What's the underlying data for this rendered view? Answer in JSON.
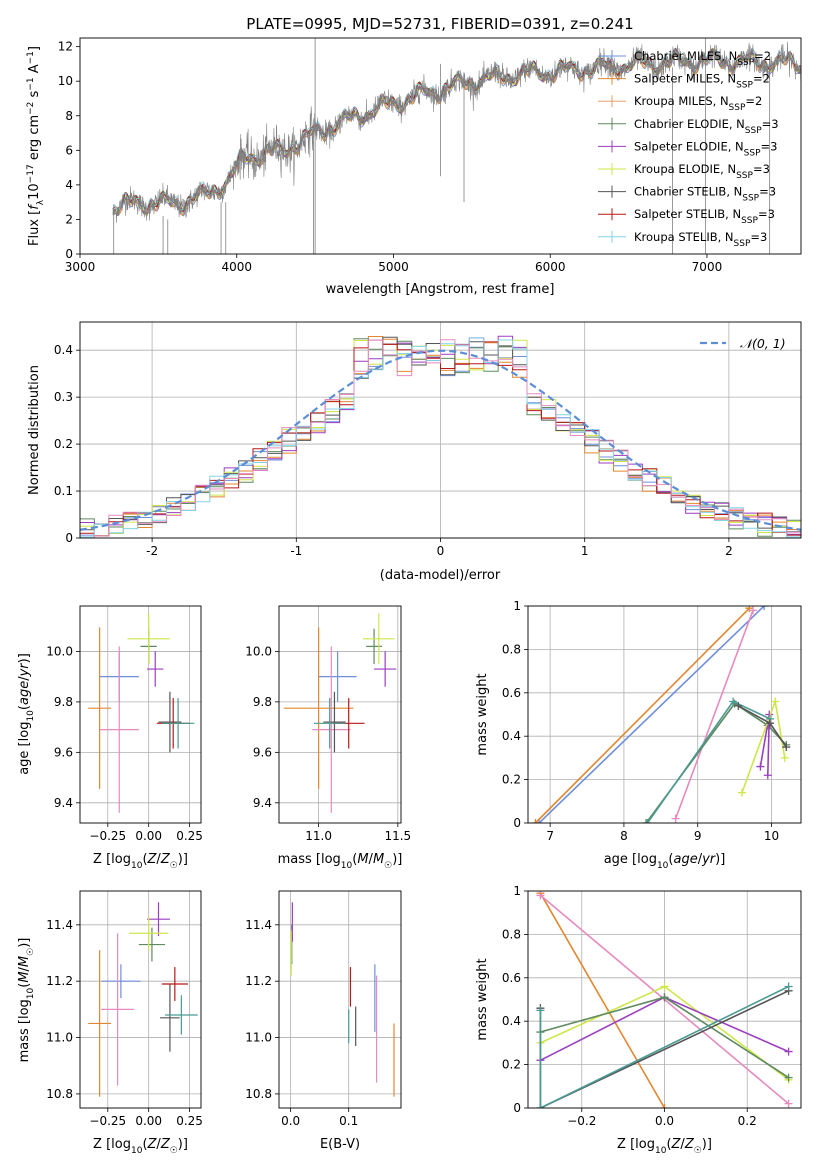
{
  "colors": {
    "miles_chabrier": "#6f8fdc",
    "miles_salpeter": "#e2872f",
    "miles_kroupa": "#e7a06a",
    "elodie_chabrier": "#5f8a5f",
    "elodie_salpeter": "#9b3fc0",
    "elodie_kroupa": "#cfe64a",
    "stelib_chabrier": "#555555",
    "stelib_salpeter": "#b61818",
    "stelib_kroupa": "#86d3e6",
    "pink": "#e58bbf",
    "teal": "#4b9a93",
    "gauss": "#5b8ed6",
    "data": "#808080"
  },
  "chart_data": [
    {
      "id": "spectrum",
      "type": "line",
      "title": "PLATE=0995, MJD=52731, FIBERID=0391, z=0.241",
      "xlabel": "wavelength [Angstrom, rest frame]",
      "ylabel": "Flux [fλ10⁻¹⁷ erg cm⁻² s⁻¹ A⁻¹]",
      "xlim": [
        3000,
        7600
      ],
      "ylim": [
        0,
        12.5
      ],
      "xticks": [
        3000,
        4000,
        5000,
        6000,
        7000
      ],
      "yticks": [
        0,
        2,
        4,
        6,
        8,
        10,
        12
      ],
      "legend_position": "upper-right",
      "legend": [
        "Chabrier MILES, N_SSP=2",
        "Salpeter MILES, N_SSP=2",
        "Kroupa MILES, N_SSP=2",
        "Chabrier ELODIE, N_SSP=3",
        "Salpeter ELODIE, N_SSP=3",
        "Kroupa ELODIE, N_SSP=3",
        "Chabrier STELIB, N_SSP=3",
        "Salpeter STELIB, N_SSP=3",
        "Kroupa STELIB, N_SSP=3"
      ],
      "continuum": [
        {
          "x": 3210,
          "y": 2.7
        },
        {
          "x": 3400,
          "y": 3.0
        },
        {
          "x": 3600,
          "y": 2.9
        },
        {
          "x": 3800,
          "y": 3.4
        },
        {
          "x": 3950,
          "y": 4.3
        },
        {
          "x": 4050,
          "y": 5.6
        },
        {
          "x": 4300,
          "y": 6.0
        },
        {
          "x": 4500,
          "y": 7.0
        },
        {
          "x": 4800,
          "y": 8.1
        },
        {
          "x": 5000,
          "y": 8.7
        },
        {
          "x": 5200,
          "y": 9.3
        },
        {
          "x": 5500,
          "y": 10.0
        },
        {
          "x": 5800,
          "y": 10.4
        },
        {
          "x": 6200,
          "y": 10.7
        },
        {
          "x": 6600,
          "y": 11.0
        },
        {
          "x": 7000,
          "y": 11.2
        },
        {
          "x": 7400,
          "y": 11.1
        },
        {
          "x": 7600,
          "y": 11.0
        }
      ]
    },
    {
      "id": "residuals",
      "type": "histogram",
      "xlabel": "(data-model)/error",
      "ylabel": "Normed distribution",
      "xlim": [
        -2.5,
        2.5
      ],
      "ylim": [
        0,
        0.46
      ],
      "xticks": [
        -2,
        -1,
        0,
        1,
        2
      ],
      "yticks": [
        0.0,
        0.1,
        0.2,
        0.3,
        0.4
      ],
      "legend": [
        "𝒩(0, 1)"
      ],
      "legend_position": "upper-right"
    },
    {
      "id": "z-age",
      "type": "errorbar",
      "xlabel": "Z [log10(Z/Z☉)]",
      "ylabel": "age  [log10(age/yr)]",
      "xlim": [
        -0.42,
        0.32
      ],
      "ylim": [
        9.32,
        10.18
      ],
      "xticks": [
        -0.25,
        0.0,
        0.25
      ],
      "xticklabels": [
        "−0.25",
        "0.00",
        "0.25"
      ],
      "yticks": [
        9.4,
        9.6,
        9.8,
        10.0
      ],
      "yticklabels": [
        "9.4",
        "9.6",
        "9.8",
        "10.0"
      ],
      "points": [
        {
          "c": "blue",
          "x": -0.18,
          "xerr": 0.12,
          "y": 9.9,
          "yerr": 0.1
        },
        {
          "c": "orange",
          "x": -0.3,
          "xerr": 0.07,
          "y": 9.775,
          "yerr": 0.32
        },
        {
          "c": "pink",
          "x": -0.18,
          "xerr": 0.12,
          "y": 9.69,
          "yerr": 0.33
        },
        {
          "c": "green",
          "x": 0.0,
          "xerr": 0.05,
          "y": 10.02,
          "yerr": 0.07
        },
        {
          "c": "purple",
          "x": 0.04,
          "xerr": 0.05,
          "y": 9.93,
          "yerr": 0.07
        },
        {
          "c": "yellow",
          "x": 0.0,
          "xerr": 0.13,
          "y": 10.05,
          "yerr": 0.1
        },
        {
          "c": "dark",
          "x": 0.13,
          "xerr": 0.07,
          "y": 9.72,
          "yerr": 0.12
        },
        {
          "c": "red",
          "x": 0.15,
          "xerr": 0.1,
          "y": 9.715,
          "yerr": 0.1
        },
        {
          "c": "teal",
          "x": 0.18,
          "xerr": 0.1,
          "y": 9.715,
          "yerr": 0.1
        }
      ]
    },
    {
      "id": "mass-age",
      "type": "errorbar",
      "xlabel": "mass [log10(M/M☉)]",
      "xlim": [
        10.75,
        11.52
      ],
      "ylim": [
        9.32,
        10.18
      ],
      "xticks": [
        11.0,
        11.5
      ],
      "xticklabels": [
        "11.0",
        "11.5"
      ],
      "yticks": [
        9.4,
        9.6,
        9.8,
        10.0
      ],
      "yticklabels": [
        "9.4",
        "9.6",
        "9.8",
        "10.0"
      ],
      "points": [
        {
          "c": "blue",
          "x": 11.12,
          "xerr": 0.12,
          "y": 9.9,
          "yerr": 0.1
        },
        {
          "c": "orange",
          "x": 11.0,
          "xerr": 0.22,
          "y": 9.775,
          "yerr": 0.32
        },
        {
          "c": "pink",
          "x": 11.08,
          "xerr": 0.12,
          "y": 9.69,
          "yerr": 0.33
        },
        {
          "c": "green",
          "x": 11.35,
          "xerr": 0.05,
          "y": 10.02,
          "yerr": 0.07
        },
        {
          "c": "purple",
          "x": 11.42,
          "xerr": 0.07,
          "y": 9.93,
          "yerr": 0.07
        },
        {
          "c": "yellow",
          "x": 11.38,
          "xerr": 0.1,
          "y": 10.05,
          "yerr": 0.1
        },
        {
          "c": "dark",
          "x": 11.1,
          "xerr": 0.07,
          "y": 9.72,
          "yerr": 0.12
        },
        {
          "c": "red",
          "x": 11.19,
          "xerr": 0.1,
          "y": 9.715,
          "yerr": 0.1
        },
        {
          "c": "teal",
          "x": 11.07,
          "xerr": 0.1,
          "y": 9.715,
          "yerr": 0.1
        }
      ]
    },
    {
      "id": "age-weight",
      "type": "line",
      "xlabel": "age  [log10(age/yr)]",
      "ylabel": "mass weight",
      "xlim": [
        6.7,
        10.4
      ],
      "ylim": [
        0,
        1
      ],
      "xticks": [
        7,
        8,
        9,
        10
      ],
      "yticks": [
        0.0,
        0.2,
        0.4,
        0.6,
        0.8,
        1.0
      ],
      "series": [
        {
          "c": "blue",
          "pts": [
            [
              6.85,
              0
            ],
            [
              9.9,
              1.0
            ]
          ]
        },
        {
          "c": "orange",
          "pts": [
            [
              6.8,
              0
            ],
            [
              9.7,
              0.99
            ]
          ]
        },
        {
          "c": "pink",
          "pts": [
            [
              8.7,
              0.02
            ],
            [
              9.75,
              0.98
            ]
          ]
        },
        {
          "c": "green",
          "pts": [
            [
              8.3,
              0.0
            ],
            [
              9.5,
              0.55
            ],
            [
              9.95,
              0.45
            ],
            [
              10.2,
              0.36
            ]
          ]
        },
        {
          "c": "purple",
          "pts": [
            [
              9.85,
              0.26
            ],
            [
              9.97,
              0.5
            ],
            [
              9.95,
              0.22
            ]
          ]
        },
        {
          "c": "yellow",
          "pts": [
            [
              9.6,
              0.14
            ],
            [
              10.05,
              0.56
            ],
            [
              10.18,
              0.3
            ]
          ]
        },
        {
          "c": "teal",
          "pts": [
            [
              8.32,
              0.0
            ],
            [
              9.48,
              0.56
            ],
            [
              9.98,
              0.48
            ]
          ]
        },
        {
          "c": "dark",
          "pts": [
            [
              9.55,
              0.54
            ],
            [
              9.98,
              0.46
            ],
            [
              10.2,
              0.35
            ]
          ]
        }
      ]
    },
    {
      "id": "z-mass",
      "type": "errorbar",
      "xlabel": "Z [log10(Z/Z☉)]",
      "ylabel": "mass [log10(M/M☉)]",
      "xlim": [
        -0.42,
        0.32
      ],
      "ylim": [
        10.75,
        11.52
      ],
      "xticks": [
        -0.25,
        0.0,
        0.25
      ],
      "xticklabels": [
        "−0.25",
        "0.00",
        "0.25"
      ],
      "yticks": [
        10.8,
        11.0,
        11.2,
        11.4
      ],
      "yticklabels": [
        "10.8",
        "11.0",
        "11.2",
        "11.4"
      ],
      "points": [
        {
          "c": "blue",
          "x": -0.17,
          "xerr": 0.12,
          "y": 11.2,
          "yerr": 0.06
        },
        {
          "c": "orange",
          "x": -0.3,
          "xerr": 0.07,
          "y": 11.05,
          "yerr": 0.26
        },
        {
          "c": "pink",
          "x": -0.19,
          "xerr": 0.1,
          "y": 11.1,
          "yerr": 0.27
        },
        {
          "c": "green",
          "x": 0.02,
          "xerr": 0.08,
          "y": 11.33,
          "yerr": 0.06
        },
        {
          "c": "purple",
          "x": 0.06,
          "xerr": 0.07,
          "y": 11.42,
          "yerr": 0.06
        },
        {
          "c": "yellow",
          "x": 0.0,
          "xerr": 0.12,
          "y": 11.37,
          "yerr": 0.06
        },
        {
          "c": "dark",
          "x": 0.13,
          "xerr": 0.06,
          "y": 11.07,
          "yerr": 0.12
        },
        {
          "c": "red",
          "x": 0.16,
          "xerr": 0.08,
          "y": 11.19,
          "yerr": 0.06
        },
        {
          "c": "teal",
          "x": 0.2,
          "xerr": 0.1,
          "y": 11.08,
          "yerr": 0.07
        }
      ]
    },
    {
      "id": "ebv-mass",
      "type": "errorbar",
      "xlabel": "E(B-V)",
      "xlim": [
        -0.02,
        0.19
      ],
      "ylim": [
        10.75,
        11.52
      ],
      "xticks": [
        0.0,
        0.1
      ],
      "xticklabels": [
        "0.0",
        "0.1"
      ],
      "yticks": [
        10.8,
        11.0,
        11.2,
        11.4
      ],
      "yticklabels": [
        "10.8",
        "11.0",
        "11.2",
        "11.4"
      ],
      "points": [
        {
          "c": "blue",
          "x": 0.145,
          "xerr": 0.0,
          "y": 11.14,
          "yerr": 0.12
        },
        {
          "c": "orange",
          "x": 0.178,
          "xerr": 0.0,
          "y": 10.92,
          "yerr": 0.13
        },
        {
          "c": "pink",
          "x": 0.148,
          "xerr": 0.0,
          "y": 11.03,
          "yerr": 0.19
        },
        {
          "c": "green",
          "x": 0.002,
          "xerr": 0.0,
          "y": 11.33,
          "yerr": 0.07
        },
        {
          "c": "purple",
          "x": 0.003,
          "xerr": 0.0,
          "y": 11.41,
          "yerr": 0.07
        },
        {
          "c": "yellow",
          "x": 0.001,
          "xerr": 0.0,
          "y": 11.3,
          "yerr": 0.08
        },
        {
          "c": "dark",
          "x": 0.112,
          "xerr": 0.0,
          "y": 11.04,
          "yerr": 0.07
        },
        {
          "c": "red",
          "x": 0.103,
          "xerr": 0.0,
          "y": 11.18,
          "yerr": 0.07
        },
        {
          "c": "teal",
          "x": 0.1,
          "xerr": 0.0,
          "y": 11.04,
          "yerr": 0.06
        }
      ]
    },
    {
      "id": "z-weight",
      "type": "line",
      "xlabel": "Z [log10(Z/Z☉)]",
      "ylabel": "mass weight",
      "xlim": [
        -0.33,
        0.33
      ],
      "ylim": [
        0,
        1
      ],
      "xticks": [
        -0.2,
        0.0,
        0.2
      ],
      "xticklabels": [
        "−0.2",
        "0.0",
        "0.2"
      ],
      "yticks": [
        0.0,
        0.2,
        0.4,
        0.6,
        0.8,
        1.0
      ],
      "series": [
        {
          "c": "orange",
          "pts": [
            [
              -0.3,
              0.99
            ],
            [
              0.0,
              0.0
            ]
          ]
        },
        {
          "c": "pink",
          "pts": [
            [
              -0.3,
              0.98
            ],
            [
              0.3,
              0.02
            ]
          ]
        },
        {
          "c": "yellow",
          "pts": [
            [
              -0.3,
              0.3
            ],
            [
              0.0,
              0.56
            ],
            [
              0.3,
              0.13
            ]
          ]
        },
        {
          "c": "purple",
          "pts": [
            [
              -0.3,
              0.22
            ],
            [
              0.0,
              0.51
            ],
            [
              0.3,
              0.26
            ]
          ]
        },
        {
          "c": "green",
          "pts": [
            [
              -0.3,
              0.35
            ],
            [
              0.0,
              0.51
            ],
            [
              0.3,
              0.14
            ]
          ]
        },
        {
          "c": "dark",
          "pts": [
            [
              -0.3,
              0.46
            ],
            [
              -0.3,
              0.0
            ],
            [
              0.3,
              0.54
            ]
          ]
        },
        {
          "c": "teal",
          "pts": [
            [
              -0.3,
              0.45
            ],
            [
              -0.3,
              0.0
            ],
            [
              0.3,
              0.56
            ]
          ]
        }
      ]
    }
  ]
}
